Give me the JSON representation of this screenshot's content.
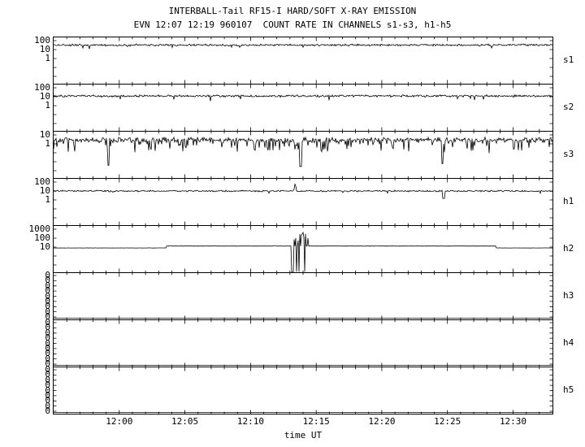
{
  "chart_data": {
    "type": "line",
    "title": "INTERBALL-Tail RF15-I HARD/SOFT X-RAY EMISSION",
    "subtitle": "EVN 12:07 12:19 960107  COUNT RATE IN CHANNELS s1-s3, h1-h5",
    "xlabel": "time UT",
    "y_scale": "log",
    "grid": false,
    "legend": "none",
    "x_axis": {
      "start_ut": "11:55",
      "end_ut": "12:33",
      "minutes_total": 38,
      "tick_labels": [
        "12:00",
        "12:05",
        "12:10",
        "12:15",
        "12:20",
        "12:25",
        "12:30"
      ],
      "tick_minutes": [
        5,
        10,
        15,
        20,
        25,
        30,
        35
      ],
      "minor_tick_every_min": 1
    },
    "panels": [
      {
        "label": "s1",
        "y_ticks": [
          "100",
          "10",
          "1"
        ],
        "signal": {
          "type": "noisy",
          "baseline": 32,
          "noise_dex": 0.13,
          "down_prob": 0.02,
          "down_dex": 0.35
        },
        "description": "steady count rate ~30 with noise band between 10 and 100"
      },
      {
        "label": "s2",
        "y_ticks": [
          "100",
          "10",
          "1"
        ],
        "signal": {
          "type": "noisy",
          "baseline": 12,
          "noise_dex": 0.15,
          "down_prob": 0.03,
          "down_dex": 0.45
        },
        "description": "steady count rate ~12 with noise"
      },
      {
        "label": "s3",
        "y_ticks": [
          "10",
          "1"
        ],
        "signal": {
          "type": "noisy",
          "baseline": 2.8,
          "noise_dex": 0.33,
          "down_prob": 0.22,
          "down_dex": 1.3,
          "down_events": [
            {
              "t_min": 4.2,
              "w_min": 0.07,
              "low": 0.004
            },
            {
              "t_min": 18.8,
              "w_min": 0.08,
              "low": 0.003
            },
            {
              "t_min": 29.6,
              "w_min": 0.06,
              "low": 0.006
            }
          ]
        },
        "description": "very noisy 0.1-10 counts with deep dropout spikes near 11:59, 12:14, 12:25"
      },
      {
        "label": "h1",
        "y_ticks": [
          "100",
          "10",
          "1"
        ],
        "signal": {
          "type": "noisy",
          "baseline": 10,
          "noise_dex": 0.1,
          "down_prob": 0.015,
          "down_dex": 0.3,
          "up_events": [
            {
              "t_min": 18.4,
              "w_min": 0.25,
              "peak": 85
            }
          ],
          "down_events": [
            {
              "t_min": 29.7,
              "w_min": 0.07,
              "low": 1.5
            }
          ]
        },
        "description": "steady ~10 counts, narrow spike to ~100 at 12:13"
      },
      {
        "label": "h2",
        "y_ticks": [
          "1000",
          "100",
          "10"
        ],
        "signal": {
          "type": "steps-burst",
          "baseline": 8,
          "noise_dex": 0.015,
          "steps": [
            {
              "start_min": 8.6,
              "end_min": 33.7,
              "level": 13,
              "start_ut": "12:03.6",
              "end_ut": "12:28.7"
            }
          ],
          "burst": {
            "start_min": 18.1,
            "end_min": 19.4,
            "start_ut": "12:13",
            "end_ut": "12:14.4",
            "log_lo": 1.6,
            "log_hi": 2.7,
            "down_frac": 0.3
          }
        },
        "description": "flat ~8, step up to ~13 at 12:03.6, intense spiky burst 12:13-12:14 reaching ~100-500 with dropouts to bottom, step back to ~8 at 12:28.7"
      },
      {
        "label": "h3",
        "y_ticks": [
          "0",
          "0",
          "0",
          "0",
          "0",
          "0",
          "0",
          "0",
          "0"
        ],
        "signal": {
          "type": "flat-zero"
        },
        "description": "zero counts, flat line at bottom"
      },
      {
        "label": "h4",
        "y_ticks": [
          "0",
          "0",
          "0",
          "0",
          "0",
          "0",
          "0",
          "0",
          "0"
        ],
        "signal": {
          "type": "flat-zero"
        },
        "description": "zero counts, flat line at bottom"
      },
      {
        "label": "h5",
        "y_ticks": [
          "0",
          "0",
          "0",
          "0",
          "0",
          "0",
          "0",
          "0",
          "0"
        ],
        "signal": {
          "type": "flat-zero"
        },
        "description": "zero counts, flat line at bottom"
      }
    ]
  }
}
